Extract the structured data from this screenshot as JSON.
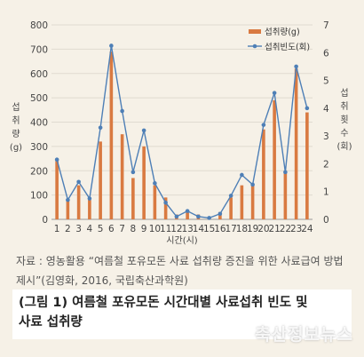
{
  "chart_data": {
    "type": "bar",
    "categories": [
      "1",
      "2",
      "3",
      "4",
      "5",
      "6",
      "7",
      "8",
      "9",
      "10",
      "11",
      "12",
      "13",
      "14",
      "15",
      "16",
      "17",
      "18",
      "19",
      "20",
      "21",
      "22",
      "23",
      "24"
    ],
    "series": [
      {
        "name": "섭취량(g)",
        "type": "bar",
        "axis": "left",
        "values": [
          240,
          80,
          140,
          80,
          320,
          690,
          350,
          170,
          300,
          140,
          90,
          20,
          30,
          20,
          10,
          30,
          90,
          140,
          140,
          370,
          490,
          200,
          620,
          440
        ]
      },
      {
        "name": "섭취빈도(회)",
        "type": "line",
        "axis": "right",
        "values": [
          2.15,
          0.7,
          1.35,
          0.75,
          3.3,
          6.25,
          3.9,
          1.7,
          3.2,
          1.3,
          0.6,
          0.1,
          0.3,
          0.1,
          0.05,
          0.2,
          0.85,
          1.6,
          1.25,
          3.4,
          4.55,
          1.7,
          5.5,
          4.0
        ]
      }
    ],
    "ylim": [
      0,
      800
    ],
    "y2lim": [
      0,
      7
    ],
    "yticks": [
      "0",
      "100",
      "200",
      "300",
      "400",
      "500",
      "600",
      "700",
      "800"
    ],
    "y2ticks": [
      "0",
      "1",
      "2",
      "3",
      "4",
      "5",
      "6",
      "7"
    ],
    "ylabel": [
      "섭",
      "취",
      "량",
      "(g)"
    ],
    "y2label": [
      "섭",
      "취",
      "횟",
      "수",
      "(회)"
    ],
    "xlabel": "시간(시)",
    "legend_position": "top-right",
    "colors": {
      "bar": "#d97a41",
      "line": "#4e7fb6"
    }
  },
  "source_text": "자료 : 영농활용 “여름철 포유모돈 사료 섭취량 증진을 위한 사료급여 방법 제시”(김영화, 2016, 국립축산과학원)",
  "caption": "(그림 1) 여름철 포유모돈 시간대별 사료섭취 빈도 및 사료 섭취량",
  "watermark": "축산정보뉴스"
}
